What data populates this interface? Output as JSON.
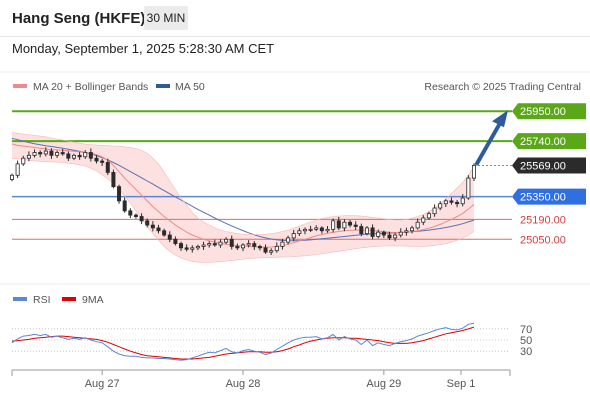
{
  "header": {
    "title": "Hang Seng (HKFE)",
    "timeframe": "30 MIN"
  },
  "datetime": "Monday, September 1, 2025 5:28:30 AM CET",
  "watermark": "Research © 2025 Trading Central",
  "colors": {
    "green": "#5aa817",
    "blue": "#5b87d6",
    "red": "#e06a6a",
    "darkblue": "#2f5c99",
    "band": "#fde0e0",
    "candle": "#2b2b2b"
  },
  "chart_data": [
    {
      "type": "candlestick",
      "legend": [
        {
          "name": "MA 20 + Bollinger Bands",
          "color": "#f08a8a"
        },
        {
          "name": "MA 50",
          "color": "#2f5c99"
        }
      ],
      "x_ticks": [
        "Aug 27",
        "Aug 28",
        "Aug 29",
        "Sep 1"
      ],
      "ylim": [
        24750,
        26050
      ],
      "levels": [
        {
          "value": 25950,
          "label": "25950.00",
          "kind": "resistance"
        },
        {
          "value": 25740,
          "label": "25740.00",
          "kind": "resistance"
        },
        {
          "value": 25569,
          "label": "25569.00",
          "kind": "last"
        },
        {
          "value": 25350,
          "label": "25350.00",
          "kind": "pivot"
        },
        {
          "value": 25190,
          "label": "25190.00",
          "kind": "support"
        },
        {
          "value": 25050,
          "label": "25050.00",
          "kind": "support"
        }
      ],
      "close": [
        25500,
        25580,
        25620,
        25640,
        25660,
        25650,
        25670,
        25640,
        25660,
        25650,
        25620,
        25640,
        25630,
        25660,
        25620,
        25600,
        25590,
        25520,
        25420,
        25320,
        25250,
        25220,
        25210,
        25180,
        25150,
        25130,
        25110,
        25080,
        25050,
        25020,
        24990,
        24980,
        24990,
        25000,
        25010,
        25020,
        25010,
        25030,
        25050,
        25000,
        24990,
        25010,
        25020,
        25000,
        24990,
        24960,
        24970,
        25000,
        25030,
        25060,
        25090,
        25110,
        25120,
        25120,
        25130,
        25110,
        25120,
        25180,
        25130,
        25170,
        25150,
        25140,
        25090,
        25130,
        25070,
        25100,
        25080,
        25060,
        25080,
        25100,
        25110,
        25130,
        25170,
        25200,
        25230,
        25270,
        25300,
        25320,
        25310,
        25300,
        25340,
        25480,
        25569
      ],
      "ma20": [
        25720,
        25710,
        25705,
        25700,
        25695,
        25690,
        25685,
        25680,
        25678,
        25676,
        25672,
        25668,
        25664,
        25660,
        25655,
        25645,
        25630,
        25605,
        25570,
        25525,
        25480,
        25440,
        25400,
        25360,
        25320,
        25280,
        25245,
        25210,
        25180,
        25150,
        25125,
        25100,
        25080,
        25065,
        25050,
        25040,
        25030,
        25022,
        25015,
        25010,
        25006,
        25003,
        25000,
        24998,
        24996,
        24995,
        24996,
        25000,
        25006,
        25015,
        25026,
        25038,
        25050,
        25062,
        25074,
        25084,
        25092,
        25100,
        25105,
        25110,
        25113,
        25115,
        25115,
        25114,
        25112,
        25108,
        25104,
        25100,
        25098,
        25098,
        25100,
        25104,
        25110,
        25118,
        25128,
        25140,
        25155,
        25172,
        25190,
        25210,
        25232,
        25262,
        25295
      ],
      "ma50": [
        25760,
        25750,
        25740,
        25730,
        25722,
        25715,
        25708,
        25702,
        25696,
        25690,
        25683,
        25676,
        25668,
        25660,
        25650,
        25638,
        25624,
        25608,
        25590,
        25570,
        25548,
        25526,
        25504,
        25482,
        25460,
        25438,
        25415,
        25392,
        25370,
        25348,
        25326,
        25304,
        25282,
        25260,
        25240,
        25220,
        25200,
        25180,
        25162,
        25144,
        25127,
        25111,
        25096,
        25082,
        25070,
        25060,
        25052,
        25046,
        25042,
        25040,
        25040,
        25041,
        25043,
        25046,
        25050,
        25054,
        25058,
        25062,
        25066,
        25070,
        25074,
        25078,
        25082,
        25085,
        25088,
        25090,
        25092,
        25094,
        25096,
        25098,
        25100,
        25103,
        25106,
        25110,
        25115,
        25120,
        25126,
        25133,
        25141,
        25150,
        25160,
        25172,
        25185
      ],
      "bb_upper": [
        25800,
        25795,
        25790,
        25785,
        25780,
        25775,
        25770,
        25762,
        25755,
        25748,
        25740,
        25732,
        25725,
        25718,
        25715,
        25712,
        25710,
        25708,
        25706,
        25704,
        25700,
        25695,
        25688,
        25675,
        25655,
        25620,
        25580,
        25520,
        25460,
        25400,
        25340,
        25290,
        25240,
        25200,
        25170,
        25150,
        25130,
        25115,
        25105,
        25097,
        25090,
        25086,
        25084,
        25083,
        25084,
        25086,
        25090,
        25096,
        25104,
        25115,
        25128,
        25142,
        25158,
        25172,
        25185,
        25196,
        25204,
        25210,
        25214,
        25216,
        25217,
        25216,
        25213,
        25209,
        25204,
        25199,
        25194,
        25190,
        25186,
        25186,
        25190,
        25198,
        25210,
        25226,
        25246,
        25270,
        25300,
        25334,
        25372,
        25410,
        25450,
        25500,
        25560
      ],
      "bb_lower": [
        25620,
        25615,
        25610,
        25605,
        25600,
        25598,
        25596,
        25594,
        25592,
        25590,
        25585,
        25580,
        25573,
        25565,
        25550,
        25530,
        25505,
        25475,
        25440,
        25400,
        25355,
        25305,
        25250,
        25195,
        25140,
        25090,
        25045,
        25000,
        24965,
        24940,
        24920,
        24905,
        24895,
        24890,
        24888,
        24888,
        24890,
        24893,
        24897,
        24902,
        24906,
        24910,
        24914,
        24917,
        24920,
        24922,
        24923,
        24924,
        24925,
        24926,
        24928,
        24931,
        24934,
        24938,
        24943,
        24948,
        24954,
        24960,
        24966,
        24972,
        24978,
        24984,
        24990,
        24994,
        24998,
        25001,
        25003,
        25004,
        25004,
        25003,
        25002,
        25000,
        25000,
        25000,
        25002,
        25006,
        25012,
        25020,
        25030,
        25044,
        25060,
        25080,
        25105
      ],
      "projection": {
        "from": 25569,
        "to": 25950
      }
    },
    {
      "type": "line",
      "legend": [
        {
          "name": "RSI",
          "color": "#5b87d6"
        },
        {
          "name": "9MA",
          "color": "#e00000"
        }
      ],
      "ylim": [
        0,
        100
      ],
      "y_ticks": [
        70,
        50,
        30
      ],
      "rsi": [
        45,
        52,
        57,
        58,
        60,
        58,
        60,
        55,
        57,
        54,
        51,
        53,
        51,
        54,
        50,
        47,
        45,
        38,
        30,
        25,
        22,
        21,
        21,
        19,
        18,
        18,
        17,
        17,
        16,
        15,
        14,
        15,
        18,
        21,
        25,
        28,
        27,
        31,
        35,
        29,
        27,
        31,
        33,
        30,
        28,
        24,
        27,
        33,
        39,
        45,
        50,
        53,
        55,
        55,
        56,
        52,
        54,
        60,
        50,
        56,
        52,
        50,
        42,
        50,
        40,
        45,
        42,
        40,
        44,
        47,
        49,
        52,
        57,
        60,
        63,
        67,
        70,
        72,
        69,
        68,
        71,
        78,
        80
      ],
      "ma9": [
        48,
        49,
        50,
        51,
        53,
        54,
        55,
        56,
        57,
        57,
        56,
        55,
        54,
        53,
        52,
        51,
        49,
        46,
        42,
        38,
        34,
        30,
        27,
        24,
        22,
        21,
        20,
        19,
        18,
        17,
        16,
        16,
        16,
        17,
        18,
        19,
        21,
        23,
        25,
        26,
        27,
        28,
        29,
        29,
        29,
        28,
        28,
        29,
        31,
        34,
        38,
        41,
        45,
        48,
        50,
        52,
        53,
        54,
        54,
        54,
        53,
        53,
        52,
        51,
        50,
        49,
        47,
        45,
        44,
        44,
        44,
        45,
        47,
        49,
        52,
        55,
        58,
        61,
        63,
        65,
        67,
        70,
        73
      ]
    }
  ]
}
